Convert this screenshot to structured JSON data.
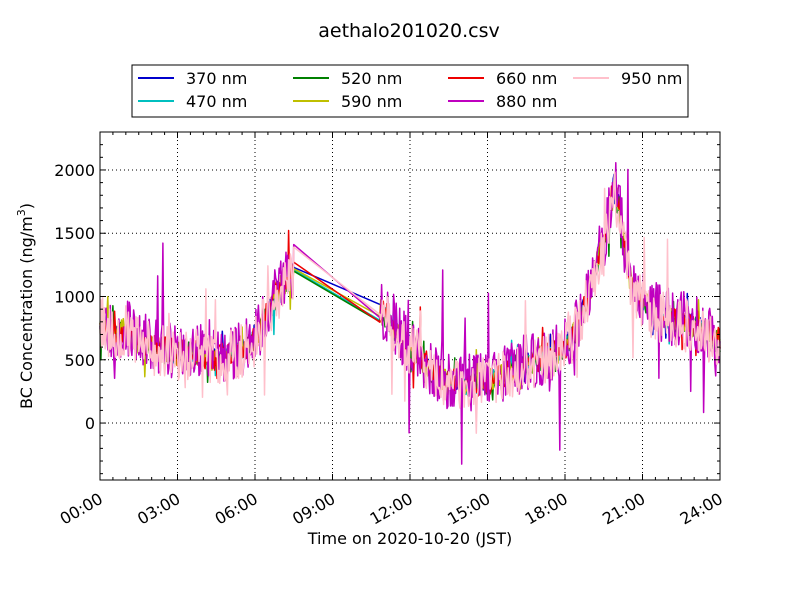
{
  "chart_data": {
    "type": "line",
    "title": "aethalo201020.csv",
    "xlabel": "Time on 2020-10-20 (JST)",
    "ylabel_main": "BC Concentration (ng/m",
    "ylabel_sup": "3",
    "ylabel_end": ")",
    "xlim": [
      0,
      24
    ],
    "ylim": [
      -450,
      2300
    ],
    "x_ticks": [
      0,
      3,
      6,
      9,
      12,
      15,
      18,
      21,
      24
    ],
    "x_tick_labels": [
      "00:00",
      "03:00",
      "06:00",
      "09:00",
      "12:00",
      "15:00",
      "18:00",
      "21:00",
      "24:00"
    ],
    "y_ticks": [
      0,
      500,
      1000,
      1500,
      2000
    ],
    "y_tick_labels": [
      "0",
      "500",
      "1000",
      "1500",
      "2000"
    ],
    "grid": true,
    "legend_placement": "top-center-outside",
    "base_profile": {
      "x": [
        0.0,
        0.3,
        0.6,
        1.0,
        1.5,
        2.0,
        2.5,
        3.0,
        3.5,
        4.0,
        4.5,
        5.0,
        5.5,
        6.0,
        6.5,
        7.0,
        7.5,
        10.8,
        11.0,
        11.3,
        11.6,
        12.0,
        12.5,
        13.0,
        13.5,
        14.0,
        14.5,
        15.0,
        15.5,
        16.0,
        16.5,
        17.0,
        17.5,
        18.0,
        18.5,
        19.0,
        19.3,
        19.5,
        19.7,
        19.9,
        20.1,
        20.3,
        20.6,
        21.0,
        21.5,
        22.0,
        22.5,
        23.0,
        23.5,
        24.0
      ],
      "y": [
        850,
        780,
        720,
        760,
        650,
        620,
        600,
        560,
        580,
        540,
        520,
        560,
        600,
        680,
        900,
        1100,
        1230,
        920,
        880,
        780,
        700,
        620,
        500,
        380,
        330,
        310,
        320,
        330,
        380,
        420,
        480,
        520,
        560,
        620,
        780,
        1100,
        1350,
        1420,
        1700,
        1900,
        1750,
        1400,
        1100,
        1000,
        900,
        850,
        820,
        800,
        720,
        650
      ]
    },
    "series": [
      {
        "name": "370 nm",
        "color": "#0000cc",
        "scale": 1.0,
        "noise": 70,
        "seed": 11,
        "gap_y": 1230
      },
      {
        "name": "470 nm",
        "color": "#00bfbf",
        "scale": 0.97,
        "noise": 80,
        "seed": 23,
        "gap_y": 1210
      },
      {
        "name": "520 nm",
        "color": "#008000",
        "scale": 0.96,
        "noise": 90,
        "seed": 37,
        "gap_y": 1200
      },
      {
        "name": "590 nm",
        "color": "#bfbf00",
        "scale": 0.97,
        "noise": 100,
        "seed": 41,
        "gap_y": 1220
      },
      {
        "name": "660 nm",
        "color": "#ee0000",
        "scale": 0.99,
        "noise": 110,
        "seed": 53,
        "gap_y": 1270
      },
      {
        "name": "880 nm",
        "color": "#bf00bf",
        "scale": 1.0,
        "noise": 230,
        "seed": 67,
        "gap_y": 1410
      },
      {
        "name": "950 nm",
        "color": "#ffc0cb",
        "scale": 0.95,
        "noise": 210,
        "seed": 79,
        "gap_y": 1390
      }
    ]
  }
}
